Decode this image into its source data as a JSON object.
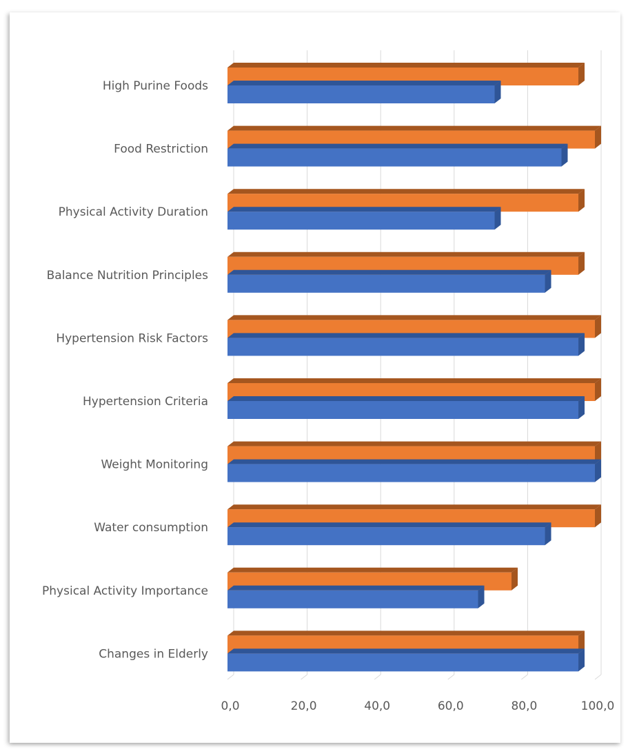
{
  "chart_data": {
    "type": "bar",
    "orientation": "horizontal",
    "style": "3d",
    "title": "",
    "xlabel": "",
    "ylabel": "",
    "categories": [
      "High Purine Foods",
      "Food Restriction",
      "Physical Activity Duration",
      "Balance Nutrition Principles",
      "Hypertension Risk Factors",
      "Hypertension Criteria",
      "Weight Monitoring",
      "Water consumption",
      "Physical Activity Importance",
      "Changes in Elderly"
    ],
    "series": [
      {
        "color": "#4472C4",
        "side": "#2F5597",
        "values": [
          72.7,
          90.9,
          72.7,
          86.4,
          95.5,
          95.5,
          100.0,
          86.4,
          68.2,
          95.5
        ]
      },
      {
        "color": "#ED7D31",
        "side": "#A5561F",
        "values": [
          95.5,
          100.0,
          95.5,
          95.5,
          100.0,
          100.0,
          100.0,
          100.0,
          77.3,
          95.5
        ]
      }
    ],
    "xlim": [
      0,
      100
    ],
    "ticks": [
      "0,0",
      "20,0",
      "40,0",
      "60,0",
      "80,0",
      "100,0"
    ],
    "tick_values": [
      0,
      20,
      40,
      60,
      80,
      100
    ],
    "grid": true,
    "legend": "none"
  }
}
